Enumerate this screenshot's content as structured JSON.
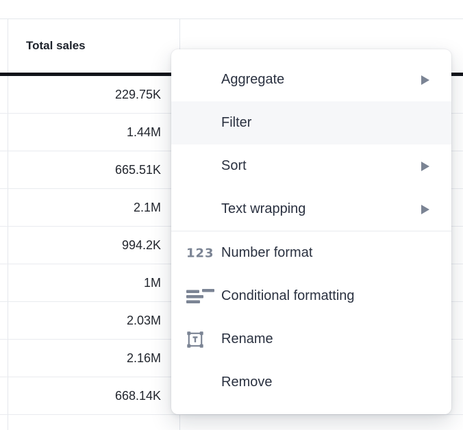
{
  "table": {
    "header_label": "Total sales",
    "rows": [
      "229.75K",
      "1.44M",
      "665.51K",
      "2.1M",
      "994.2K",
      "1M",
      "2.03M",
      "2.16M",
      "668.14K"
    ]
  },
  "menu": {
    "groups": [
      {
        "items": [
          {
            "label": "Aggregate",
            "submenu": true
          },
          {
            "label": "Filter",
            "hovered": true
          },
          {
            "label": "Sort",
            "submenu": true
          },
          {
            "label": "Text wrapping",
            "submenu": true
          }
        ]
      },
      {
        "items": [
          {
            "label": "Number format",
            "icon": "number-format-icon",
            "icon_text": "123"
          },
          {
            "label": "Conditional formatting",
            "icon": "conditional-formatting-icon"
          },
          {
            "label": "Rename",
            "icon": "rename-icon"
          },
          {
            "label": "Remove"
          }
        ]
      }
    ]
  },
  "colors": {
    "page_bg": "#ffffff",
    "menu_bg": "#ffffff",
    "menu_text": "#2a3140",
    "menu_hover_bg": "#f6f7f9",
    "icon_gray": "#7b8494",
    "separator": "#e8eaee",
    "table_text": "#22262e",
    "header_text": "#1d222b",
    "row_border": "#e9ebef",
    "column_border": "#e4e7ec",
    "header_rule": "#101319"
  }
}
